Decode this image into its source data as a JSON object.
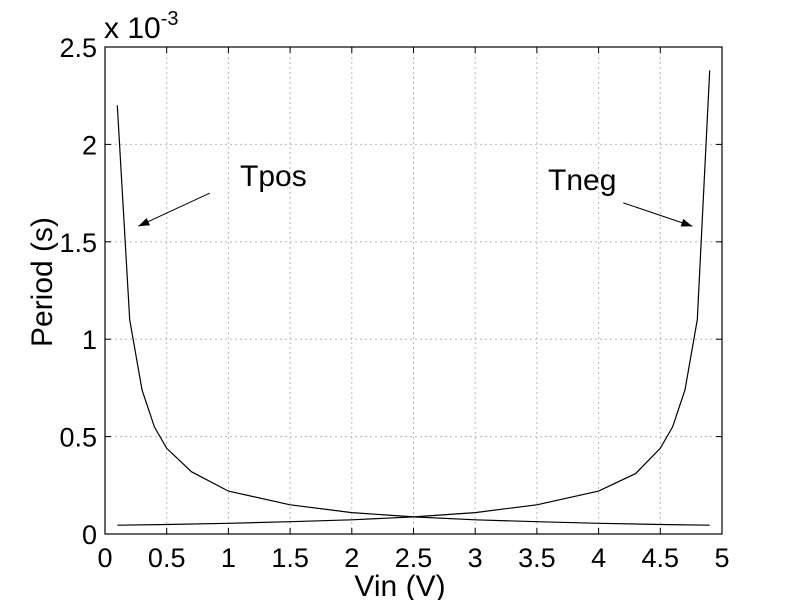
{
  "chart_data": {
    "type": "line",
    "xlabel": "Vin (V)",
    "ylabel": "Period (s)",
    "y_multiplier": "x 10",
    "y_multiplier_exponent": "-3",
    "xlim": [
      0,
      5
    ],
    "ylim": [
      0,
      2.5
    ],
    "x_ticks": [
      0,
      0.5,
      1,
      1.5,
      2,
      2.5,
      3,
      3.5,
      4,
      4.5,
      5
    ],
    "x_tick_labels": [
      "0",
      "0.5",
      "1",
      "1.5",
      "2",
      "2.5",
      "3",
      "3.5",
      "4",
      "4.5",
      "5"
    ],
    "y_ticks": [
      0,
      0.5,
      1,
      1.5,
      2,
      2.5
    ],
    "y_tick_labels": [
      "0",
      "0.5",
      "1",
      "1.5",
      "2",
      "2.5"
    ],
    "grid": true,
    "series": [
      {
        "name": "Tpos",
        "x": [
          0.1,
          0.2,
          0.3,
          0.4,
          0.5,
          0.7,
          1.0,
          1.5,
          2.0,
          2.5,
          3.0,
          3.5,
          4.0,
          4.5,
          4.9
        ],
        "y": [
          2.2,
          1.1,
          0.74,
          0.55,
          0.44,
          0.32,
          0.22,
          0.15,
          0.11,
          0.088,
          0.073,
          0.063,
          0.055,
          0.049,
          0.045
        ]
      },
      {
        "name": "Tneg",
        "x": [
          0.1,
          0.5,
          1.0,
          1.5,
          2.0,
          2.5,
          3.0,
          3.5,
          4.0,
          4.3,
          4.5,
          4.6,
          4.7,
          4.8,
          4.9
        ],
        "y": [
          0.045,
          0.049,
          0.055,
          0.063,
          0.073,
          0.088,
          0.11,
          0.15,
          0.22,
          0.31,
          0.44,
          0.55,
          0.74,
          1.1,
          2.38
        ]
      }
    ],
    "annotations": [
      {
        "text": "Tpos",
        "arrow_from": [
          0.85,
          1.75
        ],
        "arrow_to": [
          0.27,
          1.58
        ]
      },
      {
        "text": "Tneg",
        "arrow_from": [
          4.2,
          1.7
        ],
        "arrow_to": [
          4.76,
          1.58
        ]
      }
    ]
  }
}
